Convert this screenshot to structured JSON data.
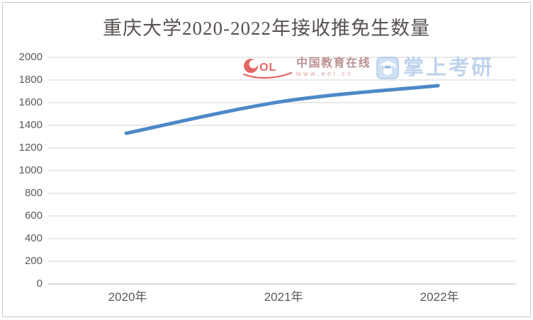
{
  "title": {
    "text": "重庆大学2020-2022年接收推免生数量",
    "color": "#57514f"
  },
  "chart_data": {
    "type": "line",
    "title": "重庆大学2020-2022年接收推免生数量",
    "categories": [
      "2020年",
      "2021年",
      "2022年"
    ],
    "series": [
      {
        "name": "接收推免生数量",
        "values": [
          1330,
          1610,
          1750
        ]
      }
    ],
    "xlabel": "",
    "ylabel": "",
    "ylim": [
      0,
      2000
    ],
    "ytick_step": 200,
    "yticks": [
      2000,
      1800,
      1600,
      1400,
      1200,
      1000,
      800,
      600,
      400,
      200,
      0
    ],
    "grid": true,
    "legend": "none",
    "smooth_line": true,
    "line_color": "#4d89c8",
    "gridline_color": "#d9d9d9",
    "baseline_color": "#c3c3c3",
    "axis_label_color": "#595959"
  },
  "watermarks": {
    "eol": {
      "logo": "eol-logo",
      "brand": "中国教育在线",
      "url": "www.eol.cn",
      "accent_color": "#e14b4b",
      "brand_color": "#ae7f7e"
    },
    "zhangshang": {
      "icon": "graduation-cap-icon",
      "brand": "掌上考研",
      "text_color": "#bad0ec",
      "icon_blue": "#8fb3e0"
    }
  }
}
